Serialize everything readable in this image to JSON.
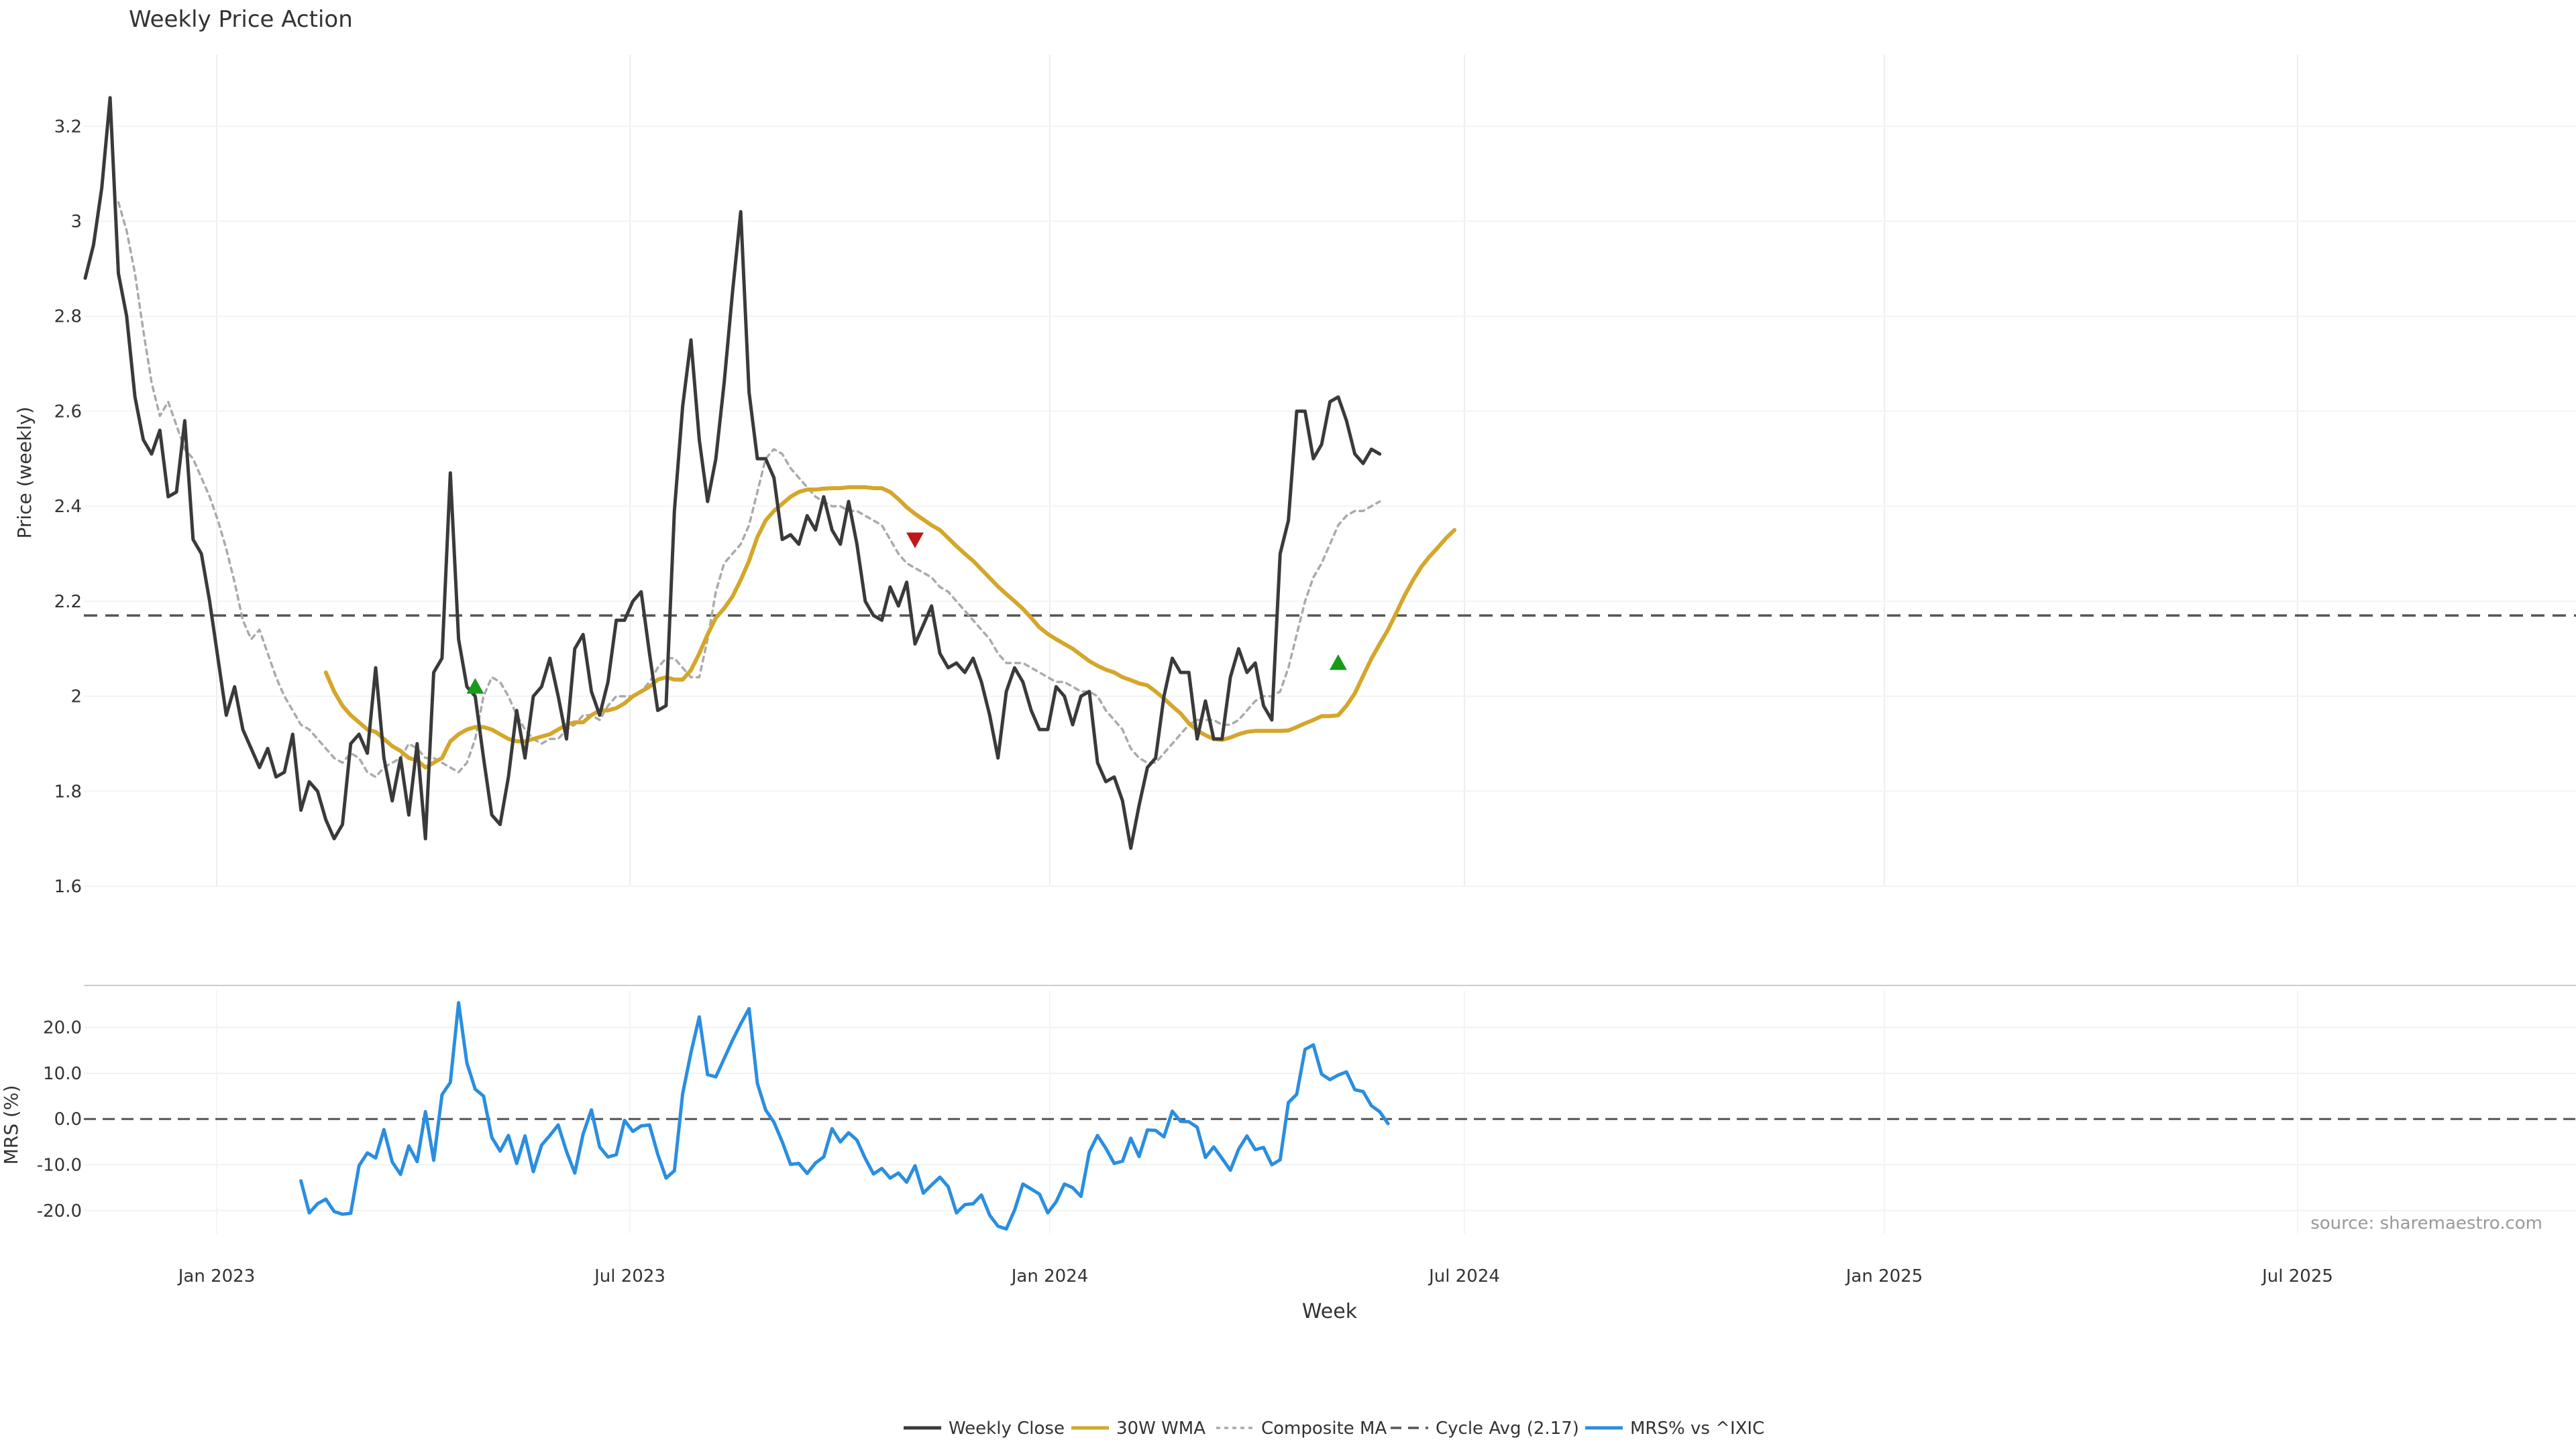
{
  "chart_data": {
    "type": "line",
    "title": "Weekly Price Action",
    "xlabel": "Week",
    "x_tick_labels": [
      "Jan 2023",
      "Jul 2023",
      "Jan 2024",
      "Jul 2024",
      "Jan 2025",
      "Jul 2025"
    ],
    "grid": true,
    "legend_position": "bottom-center",
    "source": "source: sharemaestro.com",
    "price_panel": {
      "ylabel": "Price (weekly)",
      "ylim": [
        1.6,
        3.35
      ],
      "y_ticks": [
        1.6,
        1.8,
        2,
        2.2,
        2.4,
        2.6,
        2.8,
        3,
        3.2
      ],
      "y_tick_labels": [
        "1.6",
        "1.8",
        "2",
        "2.2",
        "2.4",
        "2.6",
        "2.8",
        "3",
        "3.2"
      ],
      "cycle_avg": 2.17,
      "series": [
        {
          "name": "Weekly Close",
          "color": "#3a3a3a",
          "start_week": 0,
          "values": [
            2.88,
            2.95,
            3.07,
            3.26,
            2.89,
            2.8,
            2.63,
            2.54,
            2.51,
            2.56,
            2.42,
            2.43,
            2.58,
            2.33,
            2.3,
            2.2,
            2.08,
            1.96,
            2.02,
            1.93,
            1.89,
            1.85,
            1.89,
            1.83,
            1.84,
            1.92,
            1.76,
            1.82,
            1.8,
            1.74,
            1.7,
            1.73,
            1.9,
            1.92,
            1.88,
            2.06,
            1.87,
            1.78,
            1.87,
            1.75,
            1.9,
            1.7,
            2.05,
            2.08,
            2.47,
            2.12,
            2.02,
            2.0,
            1.87,
            1.75,
            1.73,
            1.83,
            1.97,
            1.87,
            2.0,
            2.02,
            2.08,
            2.0,
            1.91,
            2.1,
            2.13,
            2.01,
            1.96,
            2.03,
            2.16,
            2.16,
            2.2,
            2.22,
            2.09,
            1.97,
            1.98,
            2.39,
            2.61,
            2.75,
            2.54,
            2.41,
            2.5,
            2.66,
            2.85,
            3.02,
            2.64,
            2.5,
            2.5,
            2.46,
            2.33,
            2.34,
            2.32,
            2.38,
            2.35,
            2.42,
            2.35,
            2.32,
            2.41,
            2.32,
            2.2,
            2.17,
            2.16,
            2.23,
            2.19,
            2.24,
            2.11,
            2.15,
            2.19,
            2.09,
            2.06,
            2.07,
            2.05,
            2.08,
            2.03,
            1.96,
            1.87,
            2.01,
            2.06,
            2.03,
            1.97,
            1.93,
            1.93,
            2.02,
            2.0,
            1.94,
            2.0,
            2.01,
            1.86,
            1.82,
            1.83,
            1.78,
            1.68,
            1.77,
            1.85,
            1.87,
            2.0,
            2.08,
            2.05,
            2.05,
            1.91,
            1.99,
            1.91,
            1.91,
            2.04,
            2.1,
            2.05,
            2.07,
            1.98,
            1.95,
            2.3,
            2.37,
            2.6,
            2.6,
            2.5,
            2.53,
            2.62,
            2.63,
            2.58,
            2.51,
            2.49,
            2.52,
            2.51
          ]
        },
        {
          "name": "30W WMA",
          "color": "#d4a62a",
          "start_week": 29,
          "values": [
            2.05,
            2.01,
            1.98,
            1.96,
            1.945,
            1.93,
            1.925,
            1.91,
            1.895,
            1.885,
            1.87,
            1.865,
            1.85,
            1.86,
            1.87,
            1.905,
            1.92,
            1.93,
            1.935,
            1.935,
            1.93,
            1.92,
            1.91,
            1.905,
            1.905,
            1.91,
            1.915,
            1.92,
            1.93,
            1.94,
            1.945,
            1.945,
            1.96,
            1.97,
            1.97,
            1.975,
            1.985,
            2.0,
            2.01,
            2.02,
            2.035,
            2.04,
            2.035,
            2.035,
            2.055,
            2.09,
            2.13,
            2.165,
            2.185,
            2.21,
            2.245,
            2.285,
            2.335,
            2.37,
            2.39,
            2.405,
            2.42,
            2.43,
            2.435,
            2.435,
            2.437,
            2.438,
            2.438,
            2.44,
            2.44,
            2.44,
            2.438,
            2.438,
            2.43,
            2.415,
            2.398,
            2.384,
            2.372,
            2.36,
            2.35,
            2.333,
            2.316,
            2.3,
            2.285,
            2.267,
            2.249,
            2.231,
            2.215,
            2.2,
            2.184,
            2.165,
            2.145,
            2.131,
            2.12,
            2.11,
            2.1,
            2.087,
            2.074,
            2.064,
            2.056,
            2.05,
            2.04,
            2.034,
            2.027,
            2.023,
            2.01,
            1.995,
            1.979,
            1.964,
            1.943,
            1.928,
            1.918,
            1.91,
            1.908,
            1.913,
            1.92,
            1.925,
            1.927,
            1.927,
            1.927,
            1.927,
            1.928,
            1.935,
            1.943,
            1.95,
            1.958,
            1.958,
            1.96,
            1.98,
            2.006,
            2.043,
            2.079,
            2.11,
            2.14,
            2.176,
            2.212,
            2.244,
            2.272,
            2.294,
            2.313,
            2.333,
            2.35
          ]
        },
        {
          "name": "Composite MA",
          "color": "#aaaaaa",
          "start_week": 4,
          "values": [
            3.04,
            2.98,
            2.89,
            2.77,
            2.66,
            2.59,
            2.62,
            2.57,
            2.52,
            2.5,
            2.46,
            2.42,
            2.37,
            2.31,
            2.24,
            2.16,
            2.12,
            2.14,
            2.09,
            2.04,
            2.0,
            1.97,
            1.94,
            1.93,
            1.91,
            1.89,
            1.87,
            1.86,
            1.88,
            1.87,
            1.84,
            1.83,
            1.85,
            1.86,
            1.87,
            1.9,
            1.89,
            1.87,
            1.87,
            1.86,
            1.85,
            1.84,
            1.86,
            1.91,
            2.0,
            2.04,
            2.03,
            2.0,
            1.96,
            1.93,
            1.91,
            1.9,
            1.91,
            1.91,
            1.93,
            1.94,
            1.96,
            1.96,
            1.95,
            1.98,
            2.0,
            2.0,
            2.0,
            2.01,
            2.03,
            2.06,
            2.08,
            2.08,
            2.06,
            2.04,
            2.04,
            2.12,
            2.22,
            2.28,
            2.3,
            2.32,
            2.36,
            2.43,
            2.5,
            2.52,
            2.51,
            2.48,
            2.46,
            2.44,
            2.42,
            2.41,
            2.4,
            2.4,
            2.39,
            2.39,
            2.38,
            2.37,
            2.36,
            2.33,
            2.3,
            2.28,
            2.27,
            2.26,
            2.25,
            2.23,
            2.22,
            2.2,
            2.18,
            2.16,
            2.14,
            2.12,
            2.09,
            2.07,
            2.07,
            2.07,
            2.06,
            2.05,
            2.04,
            2.03,
            2.03,
            2.02,
            2.01,
            2.01,
            2.0,
            1.97,
            1.95,
            1.93,
            1.89,
            1.87,
            1.86,
            1.86,
            1.88,
            1.9,
            1.92,
            1.94,
            1.95,
            1.95,
            1.95,
            1.94,
            1.94,
            1.95,
            1.97,
            1.99,
            2.0,
            2.0,
            2.01,
            2.06,
            2.13,
            2.2,
            2.25,
            2.28,
            2.32,
            2.36,
            2.38,
            2.39,
            2.39,
            2.4,
            2.41
          ]
        }
      ],
      "markers": [
        {
          "type": "buy",
          "color": "#1a9a1a",
          "week": 47,
          "value": 2.02
        },
        {
          "type": "sell",
          "color": "#c01818",
          "week": 100,
          "value": 2.33
        },
        {
          "type": "buy",
          "color": "#1a9a1a",
          "week": 151,
          "value": 2.07
        }
      ]
    },
    "mrs_panel": {
      "ylabel": "MRS (%)",
      "ylim": [
        -25,
        28
      ],
      "y_ticks": [
        -20,
        -10,
        0,
        10,
        20
      ],
      "y_tick_labels": [
        "-20.0",
        "-10.0",
        "0.0",
        "10.0",
        "20.0"
      ],
      "zero_line": 0,
      "series": [
        {
          "name": "MRS% vs ^IXIC",
          "color": "#2a8ee0",
          "start_week": 26,
          "values": [
            -13.5,
            -20.5,
            -18.5,
            -17.5,
            -20.2,
            -20.8,
            -20.6,
            -10.2,
            -7.4,
            -8.5,
            -2.3,
            -9.4,
            -12.1,
            -5.9,
            -9.3,
            1.6,
            -9.0,
            5.3,
            8.0,
            25.4,
            12.2,
            6.5,
            5.0,
            -4.0,
            -7.0,
            -3.6,
            -9.7,
            -3.7,
            -11.5,
            -5.7,
            -3.6,
            -1.3,
            -7.1,
            -11.8,
            -3.3,
            2.0,
            -6.1,
            -8.3,
            -7.8,
            -0.3,
            -2.7,
            -1.5,
            -1.3,
            -7.7,
            -12.9,
            -11.3,
            5.5,
            14.5,
            22.3,
            9.7,
            9.2,
            13.2,
            17.2,
            20.8,
            24.1,
            7.8,
            2.0,
            -0.7,
            -5.0,
            -9.9,
            -9.7,
            -11.9,
            -9.6,
            -8.3,
            -2.1,
            -5.0,
            -3.0,
            -4.6,
            -8.6,
            -12.0,
            -10.8,
            -12.9,
            -11.8,
            -13.8,
            -10.2,
            -16.2,
            -14.4,
            -12.7,
            -14.8,
            -20.5,
            -18.7,
            -18.5,
            -16.6,
            -21.0,
            -23.4,
            -24.0,
            -19.9,
            -14.2,
            -15.3,
            -16.4,
            -20.5,
            -18.1,
            -14.2,
            -15.0,
            -16.9,
            -7.2,
            -3.6,
            -6.4,
            -9.7,
            -9.2,
            -4.2,
            -8.2,
            -2.4,
            -2.5,
            -3.9,
            1.7,
            -0.5,
            -0.6,
            -1.8,
            -8.4,
            -6.1,
            -8.6,
            -11.2,
            -6.6,
            -3.7,
            -6.7,
            -6.2,
            -10.0,
            -8.9,
            3.6,
            5.4,
            15.2,
            16.2,
            9.8,
            8.6,
            9.6,
            10.3,
            6.4,
            6.0,
            2.9,
            1.6,
            -1.0
          ]
        }
      ]
    }
  },
  "legend": [
    {
      "label": "Weekly Close",
      "color": "#3a3a3a",
      "dash": "solid"
    },
    {
      "label": "30W WMA",
      "color": "#d4a62a",
      "dash": "solid"
    },
    {
      "label": "Composite MA",
      "color": "#aaaaaa",
      "dash": "dotted"
    },
    {
      "label": "Cycle Avg (2.17)",
      "color": "#555555",
      "dash": "dashed"
    },
    {
      "label": "MRS% vs ^IXIC",
      "color": "#2a8ee0",
      "dash": "solid"
    }
  ]
}
